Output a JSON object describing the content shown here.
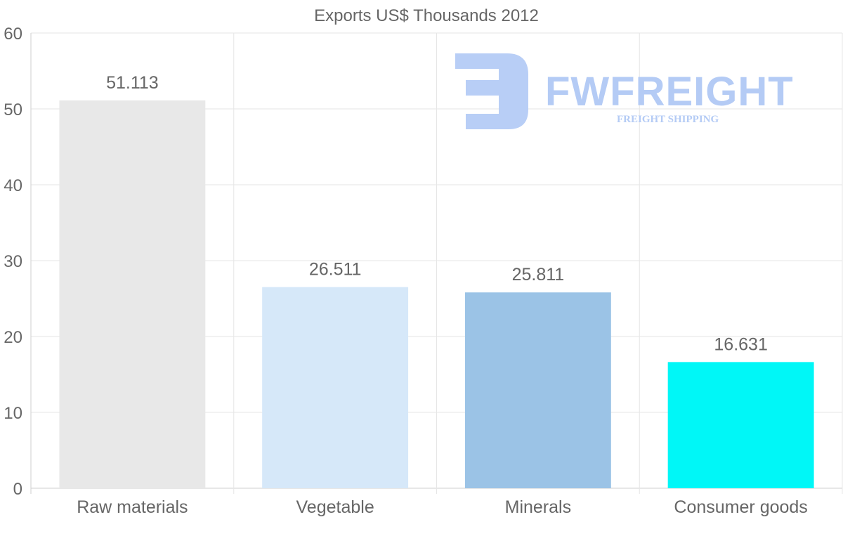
{
  "chart_data": {
    "type": "bar",
    "title": "Exports US$ Thousands 2012",
    "categories": [
      "Raw materials",
      "Vegetable",
      "Minerals",
      "Consumer goods"
    ],
    "values": [
      51.113,
      26.511,
      25.811,
      16.631
    ],
    "value_labels": [
      "51.113",
      "26.511",
      "25.811",
      "16.631"
    ],
    "colors": [
      "#e8e8e8",
      "#d6e8f9",
      "#9bc3e6",
      "#00f7f7"
    ],
    "xlabel": "",
    "ylabel": "",
    "ylim": [
      0,
      60
    ],
    "yticks": [
      0,
      10,
      20,
      30,
      40,
      50,
      60
    ],
    "grid": true,
    "legend": "none"
  },
  "watermark": {
    "brand": "FWFREIGHT",
    "tagline": "FREIGHT SHIPPING",
    "color": "#b4cbf5"
  }
}
